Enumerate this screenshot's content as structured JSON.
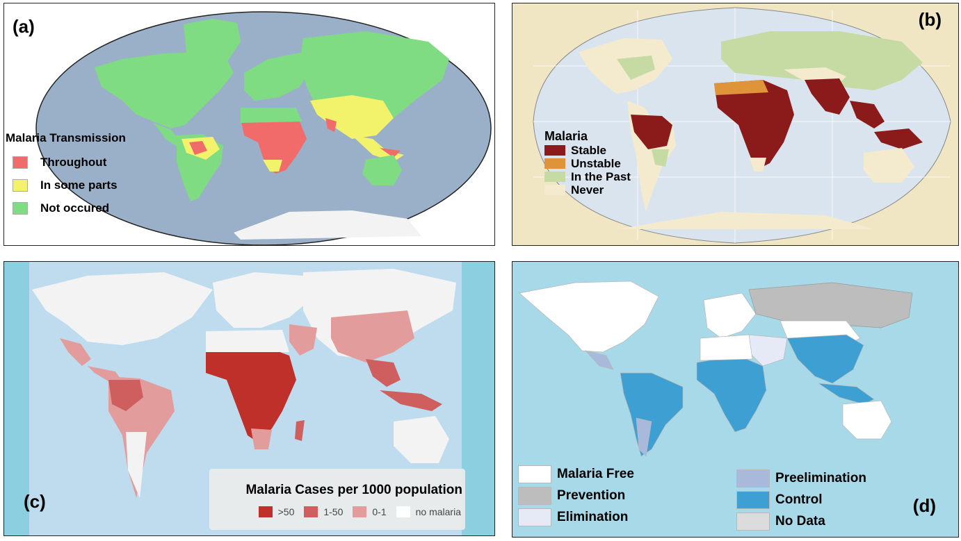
{
  "panel_a": {
    "label": "(a)",
    "legend_title": "Malaria Transmission",
    "legend": [
      {
        "label": "Throughout",
        "color": "#f26b6b"
      },
      {
        "label": "In some parts",
        "color": "#f2f26b"
      },
      {
        "label": "Not occured",
        "color": "#7fdc82"
      }
    ],
    "ocean_color": "#9ab0c8",
    "land_color": "#7fdc82"
  },
  "panel_b": {
    "label": "(b)",
    "legend_title": "Malaria",
    "legend": [
      {
        "label": "Stable",
        "color": "#8b1a1a"
      },
      {
        "label": "Unstable",
        "color": "#e0943a"
      },
      {
        "label": "In the Past",
        "color": "#c6dba4"
      },
      {
        "label": "Never",
        "color": "#f4ebcf"
      }
    ],
    "ocean_color": "#d9e4ee",
    "frame_color": "#f1e6c3"
  },
  "panel_c": {
    "label": "(c)",
    "legend_title": "Malaria Cases per 1000 population",
    "legend": [
      {
        "label": ">50",
        "color": "#c0302b"
      },
      {
        "label": "1-50",
        "color": "#cf5e5e"
      },
      {
        "label": "0-1",
        "color": "#e39c9c"
      },
      {
        "label": "no malaria",
        "color": "#ffffff"
      }
    ],
    "ocean_color": "#bfdcef",
    "side_color": "#8ccfe0"
  },
  "panel_d": {
    "label": "(d)",
    "legend_left": [
      {
        "label": "Malaria Free",
        "color": "#ffffff"
      },
      {
        "label": "Prevention",
        "color": "#bdbdbd"
      },
      {
        "label": "Elimination",
        "color": "#e6eaf6"
      }
    ],
    "legend_right": [
      {
        "label": "Preelimination",
        "color": "#a9b9dc"
      },
      {
        "label": "Control",
        "color": "#3e9fd2"
      },
      {
        "label": "No Data",
        "color": "#dcdcdc"
      }
    ],
    "ocean_color": "#a7d9e8"
  }
}
